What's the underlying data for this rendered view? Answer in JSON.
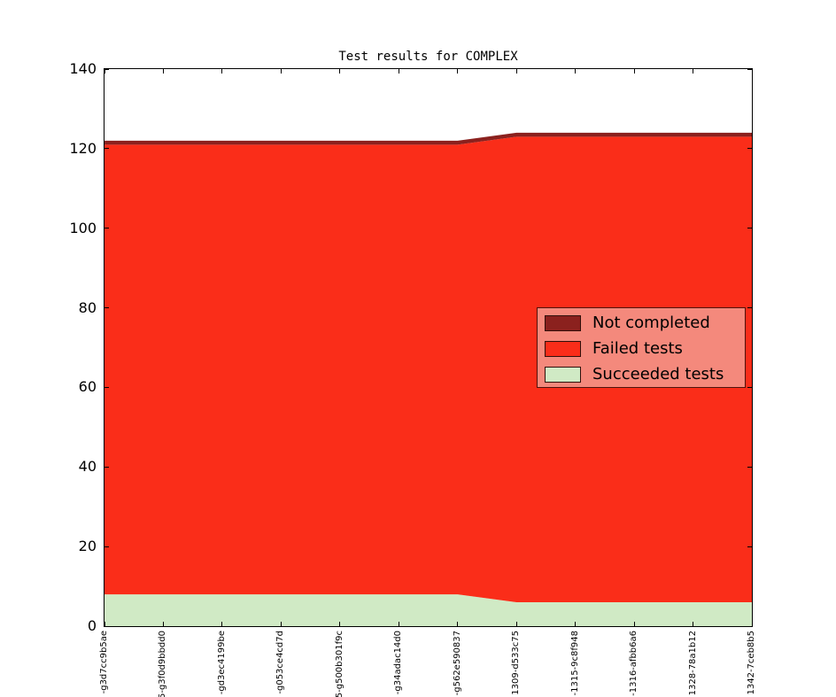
{
  "chart_data": {
    "type": "area",
    "stacked": true,
    "title": "Test results for COMPLEX",
    "x_labels": [
      "-g3d7cc9b5ae",
      "5-g3f0d9bbdd0",
      "-gd3ec4199be",
      "-g053ce4cd7d",
      "5-g500b301f9c",
      "-g34adac14d0",
      "-g562e590837",
      "1309-d533c75",
      "-1315-9c8f948",
      "-1316-afbb6a6",
      "1328-78a1b12",
      "1342-7ceb8b5"
    ],
    "ylim": [
      0,
      140
    ],
    "yticks": [
      0,
      20,
      40,
      60,
      80,
      100,
      120,
      140
    ],
    "series": [
      {
        "name": "Succeeded tests",
        "color": "#D0EAC5",
        "values": [
          8,
          8,
          8,
          8,
          8,
          8,
          8,
          6,
          6,
          6,
          6,
          6
        ]
      },
      {
        "name": "Failed tests",
        "color": "#FA2D19",
        "values": [
          113,
          113,
          113,
          113,
          113,
          113,
          113,
          117,
          117,
          117,
          117,
          117
        ]
      },
      {
        "name": "Not completed",
        "color": "#8B211E",
        "values": [
          1,
          1,
          1,
          1,
          1,
          1,
          1,
          1,
          1,
          1,
          1,
          1
        ]
      }
    ],
    "legend": {
      "position": "center right",
      "background": "#F4897C",
      "border_color": "#4F130C",
      "items": [
        {
          "label": "Not completed",
          "color": "#8B211E"
        },
        {
          "label": "Failed tests",
          "color": "#FA2D19"
        },
        {
          "label": "Succeeded tests",
          "color": "#D0EAC5"
        }
      ]
    },
    "grid": false,
    "axes_border_color": "#000000"
  }
}
